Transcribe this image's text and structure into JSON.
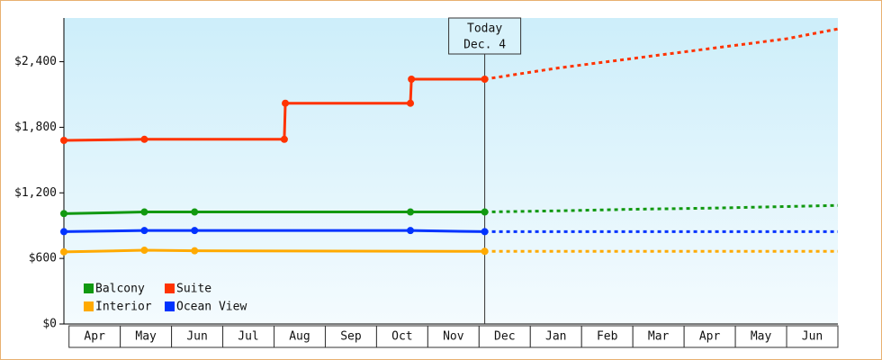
{
  "chart_data": {
    "type": "step-line",
    "xlim": [
      -0.1,
      15
    ],
    "ylim": [
      0,
      2800
    ],
    "yticks": [
      {
        "value": 0,
        "label": "$0"
      },
      {
        "value": 600,
        "label": "$600"
      },
      {
        "value": 1200,
        "label": "$1,200"
      },
      {
        "value": 1800,
        "label": "$1,800"
      },
      {
        "value": 2400,
        "label": "$2,400"
      }
    ],
    "xticks": [
      {
        "value": 0.5,
        "label": "Apr"
      },
      {
        "value": 1.5,
        "label": "May"
      },
      {
        "value": 2.5,
        "label": "Jun"
      },
      {
        "value": 3.5,
        "label": "Jul"
      },
      {
        "value": 4.5,
        "label": "Aug"
      },
      {
        "value": 5.5,
        "label": "Sep"
      },
      {
        "value": 6.5,
        "label": "Oct"
      },
      {
        "value": 7.5,
        "label": "Nov"
      },
      {
        "value": 8.5,
        "label": "Dec"
      },
      {
        "value": 9.5,
        "label": "Jan"
      },
      {
        "value": 10.5,
        "label": "Feb"
      },
      {
        "value": 11.5,
        "label": "Mar"
      },
      {
        "value": 12.5,
        "label": "Apr"
      },
      {
        "value": 13.5,
        "label": "May"
      },
      {
        "value": 14.5,
        "label": "Jun"
      }
    ],
    "today": {
      "x": 8.11,
      "label": "Today",
      "date": "Dec. 4"
    },
    "series": [
      {
        "name": "Balcony",
        "color": "#119911",
        "x": [
          -0.1,
          1.47,
          2.45,
          6.66,
          8.11
        ],
        "values": [
          1010,
          1025,
          1025,
          1025,
          1025
        ],
        "forecast_x": [
          8.11,
          9.5,
          11,
          12.5,
          14,
          15
        ],
        "forecast_values": [
          1025,
          1035,
          1050,
          1060,
          1075,
          1085
        ]
      },
      {
        "name": "Suite",
        "color": "#ff3300",
        "x": [
          -0.1,
          1.47,
          4.2,
          4.22,
          6.66,
          6.68,
          8.11
        ],
        "values": [
          1680,
          1690,
          1690,
          2020,
          2020,
          2240,
          2240
        ],
        "forecast_x": [
          8.11,
          9.5,
          11,
          12.5,
          14,
          15
        ],
        "forecast_values": [
          2240,
          2340,
          2430,
          2520,
          2610,
          2700
        ]
      },
      {
        "name": "Interior",
        "color": "#ffaa00",
        "x": [
          -0.1,
          1.47,
          2.45,
          8.11
        ],
        "values": [
          660,
          675,
          670,
          665
        ],
        "forecast_x": [
          8.11,
          15
        ],
        "forecast_values": [
          665,
          665
        ]
      },
      {
        "name": "Ocean View",
        "color": "#0033ff",
        "x": [
          -0.1,
          1.47,
          2.45,
          6.66,
          8.11
        ],
        "values": [
          845,
          855,
          855,
          855,
          845
        ],
        "forecast_x": [
          8.11,
          15
        ],
        "forecast_values": [
          845,
          845
        ]
      }
    ]
  }
}
